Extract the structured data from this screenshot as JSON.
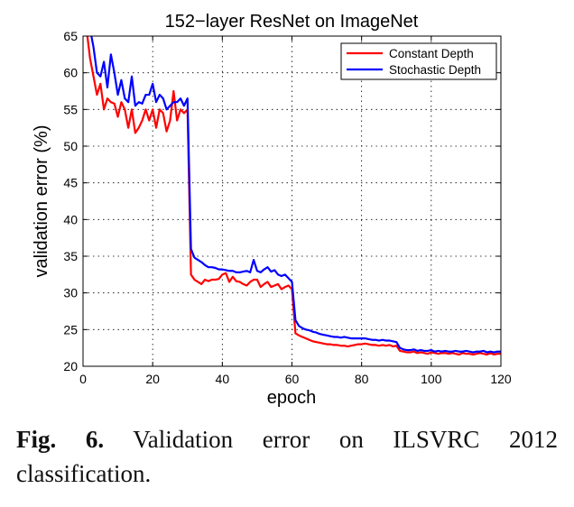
{
  "chart_data": {
    "type": "line",
    "title": "152−layer ResNet on ImageNet",
    "xlabel": "epoch",
    "ylabel": "validation error (%)",
    "xlim": [
      0,
      120
    ],
    "ylim": [
      20,
      65
    ],
    "x_ticks": [
      0,
      20,
      40,
      60,
      80,
      100,
      120
    ],
    "y_ticks": [
      20,
      25,
      30,
      35,
      40,
      45,
      50,
      55,
      60,
      65
    ],
    "grid": true,
    "legend_position": "top-right",
    "series": [
      {
        "name": "Constant Depth",
        "color": "#ff0000",
        "x": [
          1,
          2,
          3,
          4,
          5,
          6,
          7,
          8,
          9,
          10,
          11,
          12,
          13,
          14,
          15,
          16,
          17,
          18,
          19,
          20,
          21,
          22,
          23,
          24,
          25,
          26,
          27,
          28,
          29,
          30,
          31,
          32,
          33,
          34,
          35,
          36,
          37,
          38,
          39,
          40,
          41,
          42,
          43,
          44,
          45,
          46,
          47,
          48,
          49,
          50,
          51,
          52,
          53,
          54,
          55,
          56,
          57,
          58,
          59,
          60,
          61,
          62,
          63,
          64,
          65,
          66,
          67,
          68,
          69,
          70,
          71,
          72,
          73,
          74,
          75,
          76,
          77,
          78,
          79,
          80,
          81,
          82,
          83,
          84,
          85,
          86,
          87,
          88,
          89,
          90,
          91,
          92,
          93,
          94,
          95,
          96,
          97,
          98,
          99,
          100,
          101,
          102,
          103,
          104,
          105,
          106,
          107,
          108,
          109,
          110,
          111,
          112,
          113,
          114,
          115,
          116,
          117,
          118,
          119,
          120
        ],
        "y": [
          66,
          62,
          59.5,
          57,
          58.5,
          55,
          56.5,
          56,
          55.8,
          54,
          56,
          55,
          52.5,
          55,
          51.8,
          52.5,
          53.5,
          55,
          53.5,
          55,
          52.5,
          55,
          54.5,
          52,
          53.5,
          57.5,
          53.5,
          55,
          54.5,
          55,
          32.5,
          31.8,
          31.5,
          31.2,
          31.8,
          31.6,
          31.8,
          31.8,
          31.9,
          32.5,
          32.7,
          31.5,
          32.2,
          31.6,
          31.5,
          31.2,
          31,
          31.5,
          31.8,
          31.8,
          30.8,
          31.2,
          31.5,
          30.8,
          31,
          31.2,
          30.5,
          30.8,
          31,
          30.5,
          24.5,
          24.2,
          24,
          23.8,
          23.6,
          23.4,
          23.3,
          23.2,
          23.1,
          23,
          23,
          22.9,
          22.9,
          22.8,
          22.8,
          22.7,
          22.8,
          22.9,
          23,
          23,
          23.1,
          23,
          22.9,
          22.9,
          22.8,
          22.9,
          22.8,
          22.9,
          22.7,
          22.8,
          22.1,
          22,
          21.9,
          21.9,
          22,
          21.8,
          21.9,
          21.8,
          21.7,
          21.9,
          21.8,
          21.7,
          21.8,
          21.8,
          21.7,
          21.8,
          21.7,
          21.6,
          21.8,
          21.7,
          21.7,
          21.6,
          21.7,
          21.8,
          21.7,
          21.6,
          21.8,
          21.6,
          21.7,
          21.7
        ]
      },
      {
        "name": "Stochastic Depth",
        "color": "#0000ff",
        "x": [
          1,
          2,
          3,
          4,
          5,
          6,
          7,
          8,
          9,
          10,
          11,
          12,
          13,
          14,
          15,
          16,
          17,
          18,
          19,
          20,
          21,
          22,
          23,
          24,
          25,
          26,
          27,
          28,
          29,
          30,
          31,
          32,
          33,
          34,
          35,
          36,
          37,
          38,
          39,
          40,
          41,
          42,
          43,
          44,
          45,
          46,
          47,
          48,
          49,
          50,
          51,
          52,
          53,
          54,
          55,
          56,
          57,
          58,
          59,
          60,
          61,
          62,
          63,
          64,
          65,
          66,
          67,
          68,
          69,
          70,
          71,
          72,
          73,
          74,
          75,
          76,
          77,
          78,
          79,
          80,
          81,
          82,
          83,
          84,
          85,
          86,
          87,
          88,
          89,
          90,
          91,
          92,
          93,
          94,
          95,
          96,
          97,
          98,
          99,
          100,
          101,
          102,
          103,
          104,
          105,
          106,
          107,
          108,
          109,
          110,
          111,
          112,
          113,
          114,
          115,
          116,
          117,
          118,
          119,
          120
        ],
        "y": [
          67,
          66,
          63.5,
          60,
          59.5,
          61.5,
          58,
          62.5,
          60,
          57,
          59,
          56.5,
          56,
          59.5,
          55.5,
          56,
          55.8,
          57,
          57,
          58.5,
          56,
          57,
          56.5,
          55,
          55.5,
          56,
          56,
          56.5,
          55.5,
          56.5,
          36,
          34.8,
          34.5,
          34.2,
          33.8,
          33.5,
          33.5,
          33.4,
          33.2,
          33.2,
          33.1,
          33,
          33,
          32.8,
          32.8,
          32.9,
          33,
          32.8,
          34.5,
          33,
          32.8,
          33.2,
          33.5,
          32.9,
          33.1,
          32.5,
          32.3,
          32.5,
          32,
          31.5,
          26.3,
          25.5,
          25.2,
          25,
          24.9,
          24.7,
          24.6,
          24.4,
          24.3,
          24.2,
          24.1,
          24,
          24,
          23.9,
          24,
          23.9,
          23.8,
          23.8,
          23.8,
          23.8,
          23.8,
          23.7,
          23.6,
          23.6,
          23.5,
          23.6,
          23.5,
          23.5,
          23.4,
          23.3,
          22.5,
          22.3,
          22.2,
          22.2,
          22.3,
          22.1,
          22.2,
          22.1,
          22.1,
          22.2,
          22,
          22.1,
          22,
          22.1,
          22,
          22,
          22.1,
          22,
          22,
          22.1,
          22,
          21.9,
          22,
          22,
          22.1,
          21.9,
          22,
          21.9,
          22,
          22
        ]
      }
    ]
  },
  "caption": {
    "label": "Fig. 6.",
    "text": "Validation error on ILSVRC 2012 classification."
  }
}
